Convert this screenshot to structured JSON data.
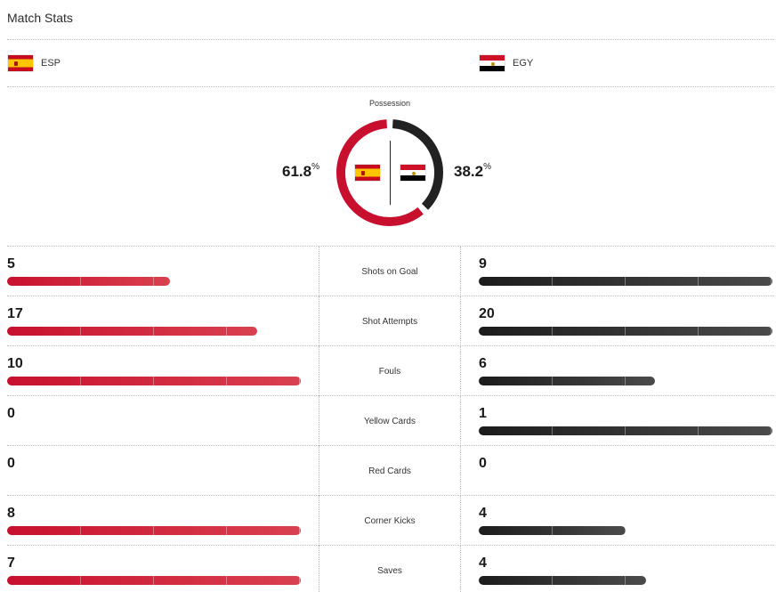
{
  "page": {
    "title": "Match Stats"
  },
  "teams": {
    "home": {
      "code": "ESP",
      "flag_icon": "spain-flag-icon",
      "color": "#c8102e"
    },
    "away": {
      "code": "EGY",
      "flag_icon": "egypt-flag-icon",
      "color": "#222222"
    }
  },
  "possession": {
    "label": "Possession",
    "home_value": "61.8",
    "away_value": "38.2",
    "unit": "%",
    "home_fraction": 0.618,
    "away_fraction": 0.382
  },
  "stats": [
    {
      "label": "Shots on Goal",
      "home": "5",
      "away": "9",
      "home_fill": 0.556,
      "away_fill": 1.0
    },
    {
      "label": "Shot Attempts",
      "home": "17",
      "away": "20",
      "home_fill": 0.85,
      "away_fill": 1.0
    },
    {
      "label": "Fouls",
      "home": "10",
      "away": "6",
      "home_fill": 1.0,
      "away_fill": 0.6
    },
    {
      "label": "Yellow Cards",
      "home": "0",
      "away": "1",
      "home_fill": 0,
      "away_fill": 1.0
    },
    {
      "label": "Red Cards",
      "home": "0",
      "away": "0",
      "home_fill": 0,
      "away_fill": 0
    },
    {
      "label": "Corner Kicks",
      "home": "8",
      "away": "4",
      "home_fill": 1.0,
      "away_fill": 0.5
    },
    {
      "label": "Saves",
      "home": "7",
      "away": "4",
      "home_fill": 1.0,
      "away_fill": 0.571
    }
  ]
}
